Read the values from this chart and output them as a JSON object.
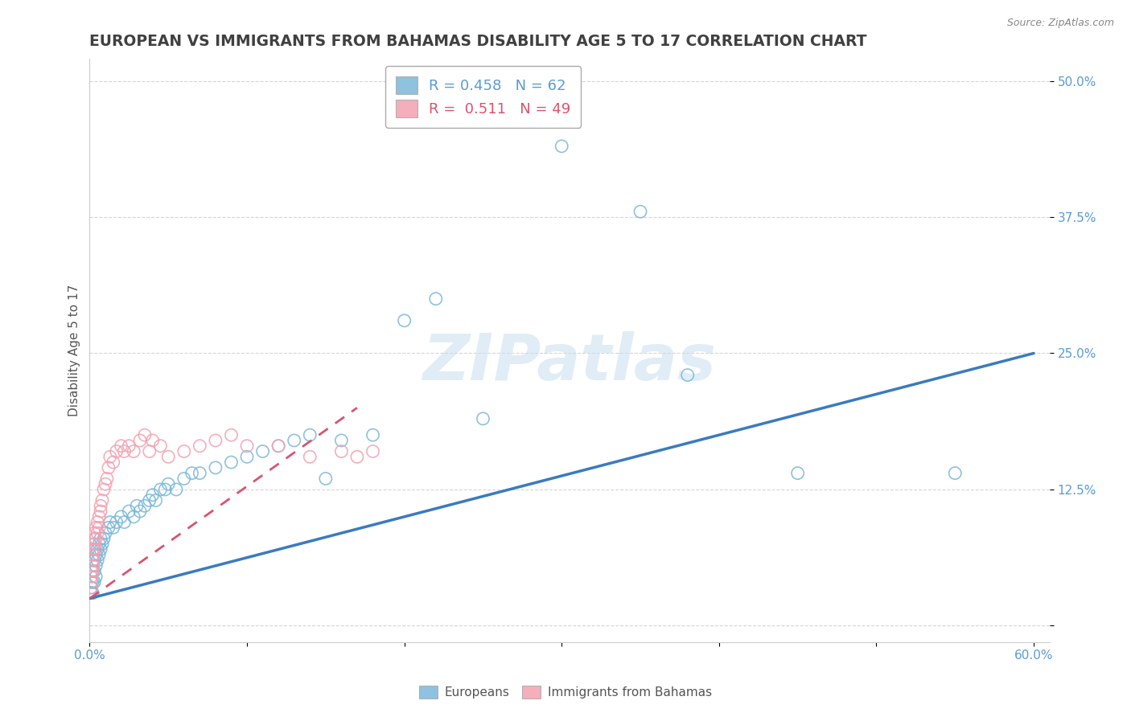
{
  "title": "EUROPEAN VS IMMIGRANTS FROM BAHAMAS DISABILITY AGE 5 TO 17 CORRELATION CHART",
  "source": "Source: ZipAtlas.com",
  "ylabel": "Disability Age 5 to 17",
  "xlim": [
    0.0,
    0.61
  ],
  "ylim": [
    -0.015,
    0.52
  ],
  "xticks": [
    0.0,
    0.1,
    0.2,
    0.3,
    0.4,
    0.5,
    0.6
  ],
  "xticklabels": [
    "0.0%",
    "",
    "",
    "",
    "",
    "",
    "60.0%"
  ],
  "ytick_positions": [
    0.0,
    0.125,
    0.25,
    0.375,
    0.5
  ],
  "ytick_labels": [
    "",
    "12.5%",
    "25.0%",
    "37.5%",
    "50.0%"
  ],
  "blue_color": "#7ab8d9",
  "pink_color": "#f4a0b0",
  "trend_blue": "#3a7bbf",
  "trend_pink": "#d9546e",
  "watermark": "ZIPatlas",
  "background_color": "#ffffff",
  "axis_color": "#5b9bd5",
  "title_color": "#404040",
  "title_fontsize": 13.5,
  "label_fontsize": 11,
  "tick_fontsize": 11,
  "blue_trend_x0": 0.0,
  "blue_trend_y0": 0.025,
  "blue_trend_x1": 0.6,
  "blue_trend_y1": 0.25,
  "pink_trend_x0": 0.0,
  "pink_trend_y0": 0.025,
  "pink_trend_x1": 0.17,
  "pink_trend_y1": 0.2,
  "europeans_x": [
    0.001,
    0.001,
    0.001,
    0.002,
    0.002,
    0.002,
    0.002,
    0.003,
    0.003,
    0.003,
    0.003,
    0.004,
    0.004,
    0.004,
    0.005,
    0.005,
    0.006,
    0.006,
    0.007,
    0.007,
    0.008,
    0.009,
    0.01,
    0.012,
    0.013,
    0.015,
    0.017,
    0.02,
    0.022,
    0.025,
    0.028,
    0.03,
    0.032,
    0.035,
    0.038,
    0.04,
    0.042,
    0.045,
    0.048,
    0.05,
    0.055,
    0.06,
    0.065,
    0.07,
    0.08,
    0.09,
    0.1,
    0.11,
    0.12,
    0.13,
    0.14,
    0.15,
    0.16,
    0.18,
    0.2,
    0.22,
    0.25,
    0.3,
    0.35,
    0.38,
    0.45,
    0.55
  ],
  "europeans_y": [
    0.035,
    0.04,
    0.03,
    0.06,
    0.05,
    0.04,
    0.03,
    0.07,
    0.06,
    0.05,
    0.04,
    0.065,
    0.055,
    0.045,
    0.07,
    0.06,
    0.075,
    0.065,
    0.08,
    0.07,
    0.075,
    0.08,
    0.085,
    0.09,
    0.095,
    0.09,
    0.095,
    0.1,
    0.095,
    0.105,
    0.1,
    0.11,
    0.105,
    0.11,
    0.115,
    0.12,
    0.115,
    0.125,
    0.125,
    0.13,
    0.125,
    0.135,
    0.14,
    0.14,
    0.145,
    0.15,
    0.155,
    0.16,
    0.165,
    0.17,
    0.175,
    0.135,
    0.17,
    0.175,
    0.28,
    0.3,
    0.19,
    0.44,
    0.38,
    0.23,
    0.14,
    0.14
  ],
  "bahamas_x": [
    0.001,
    0.001,
    0.001,
    0.001,
    0.002,
    0.002,
    0.002,
    0.002,
    0.002,
    0.003,
    0.003,
    0.003,
    0.004,
    0.004,
    0.004,
    0.005,
    0.005,
    0.006,
    0.006,
    0.007,
    0.007,
    0.008,
    0.009,
    0.01,
    0.011,
    0.012,
    0.013,
    0.015,
    0.017,
    0.02,
    0.022,
    0.025,
    0.028,
    0.032,
    0.035,
    0.038,
    0.04,
    0.045,
    0.05,
    0.06,
    0.07,
    0.08,
    0.09,
    0.1,
    0.12,
    0.14,
    0.16,
    0.17,
    0.18
  ],
  "bahamas_y": [
    0.04,
    0.05,
    0.045,
    0.035,
    0.055,
    0.065,
    0.06,
    0.07,
    0.05,
    0.08,
    0.075,
    0.085,
    0.09,
    0.08,
    0.07,
    0.095,
    0.085,
    0.1,
    0.09,
    0.11,
    0.105,
    0.115,
    0.125,
    0.13,
    0.135,
    0.145,
    0.155,
    0.15,
    0.16,
    0.165,
    0.16,
    0.165,
    0.16,
    0.17,
    0.175,
    0.16,
    0.17,
    0.165,
    0.155,
    0.16,
    0.165,
    0.17,
    0.175,
    0.165,
    0.165,
    0.155,
    0.16,
    0.155,
    0.16
  ]
}
